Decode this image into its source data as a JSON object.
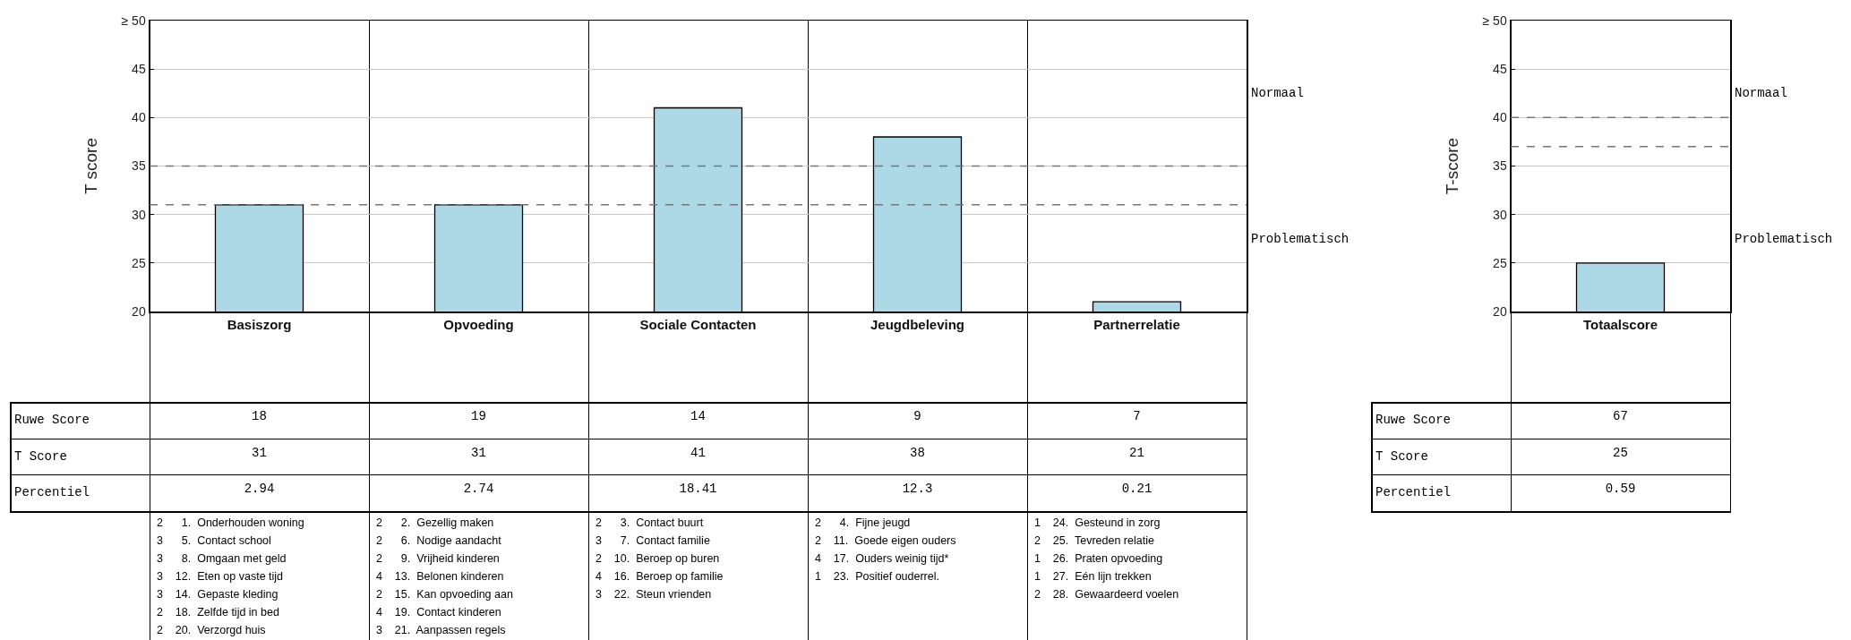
{
  "chart_data": [
    {
      "type": "bar",
      "ylabel": "T score",
      "categories": [
        "Basiszorg",
        "Opvoeding",
        "Sociale Contacten",
        "Jeugdbeleving",
        "Partnerrelatie"
      ],
      "values": [
        31,
        31,
        41,
        38,
        21
      ],
      "color": "#add8e6",
      "ylim": [
        20,
        50
      ],
      "yticks": [
        20,
        25,
        30,
        35,
        40,
        45,
        {
          "value": 50,
          "label": "≥ 50"
        }
      ],
      "grid": "y",
      "data_labels": true,
      "ref_lines": [
        {
          "axis": "y",
          "value": 35,
          "line_style": "dashed",
          "color": "#777777"
        },
        {
          "axis": "y",
          "value": 31,
          "line_style": "dashed",
          "color": "#777777"
        }
      ],
      "annotations": [
        "Normaal",
        "Problematisch",
        "Ruwe Score",
        "T Score",
        "Percentiel",
        "18",
        "19",
        "14",
        "9",
        "7",
        "2.94",
        "2.74",
        "18.41",
        "12.3",
        "0.21",
        "2      1.  Onderhouden woning\n3      5.  Contact school\n3      8.  Omgaan met geld\n3    12.  Eten op vaste tijd\n3    14.  Gepaste kleding\n2    18.  Zelfde tijd in bed\n2    20.  Verzorgd huis",
        "2      2.  Gezellig maken\n2      6.  Nodige aandacht\n2      9.  Vrijheid kinderen\n4    13.  Belonen kinderen\n2    15.  Kan opvoeding aan\n4    19.  Contact kinderen\n3    21.  Aanpassen regels",
        "2      3.  Contact buurt\n3      7.  Contact familie\n2    10.  Beroep op buren\n4    16.  Beroep op familie\n3    22.  Steun vrienden",
        "2      4.  Fijne jeugd\n2    11.  Goede eigen ouders\n4    17.  Ouders weinig tijd*\n1    23.  Positief ouderrel.",
        "1    24.  Gesteund in zorg\n2    25.  Tevreden relatie\n1    26.  Praten opvoeding\n1    27.  Eén lijn trekken\n2    28.  Gewaardeerd voelen"
      ]
    },
    {
      "type": "bar",
      "ylabel": "T-score",
      "categories": [
        "Totaalscore"
      ],
      "values": [
        25
      ],
      "color": "#add8e6",
      "ylim": [
        20,
        50
      ],
      "yticks": [
        20,
        25,
        30,
        35,
        40,
        45,
        {
          "value": 50,
          "label": "≥ 50"
        }
      ],
      "grid": "y",
      "ref_lines": [
        {
          "axis": "y",
          "value": 40,
          "line_style": "dashed",
          "color": "#777777"
        },
        {
          "axis": "y",
          "value": 37,
          "line_style": "dashed",
          "color": "#777777"
        }
      ],
      "annotations": [
        "Normaal",
        "Problematisch",
        "Ruwe Score",
        "T Score",
        "Percentiel",
        "67",
        "25",
        "0.59"
      ]
    }
  ]
}
